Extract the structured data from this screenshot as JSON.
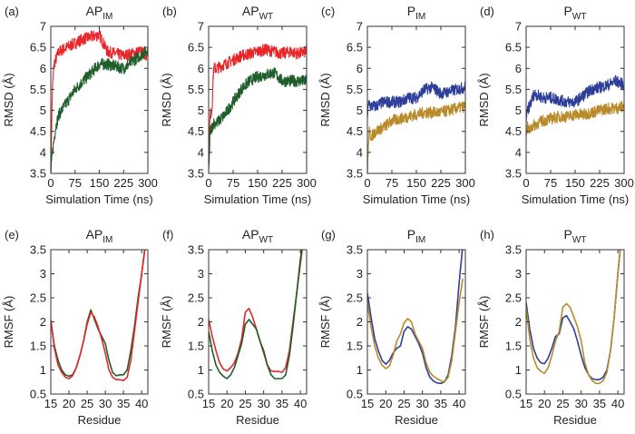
{
  "chart_data": [
    {
      "panel_label": "(a)",
      "title": "AP",
      "title_sub": "IM",
      "type": "line",
      "xlabel": "Simulation Time (ns)",
      "ylabel": "RMSD (Å)",
      "xlim": [
        0,
        300
      ],
      "ylim": [
        3.5,
        7
      ],
      "xticks": [
        "0",
        "75",
        "150",
        "225",
        "300"
      ],
      "yticks": [
        "3.5",
        "4",
        "4.5",
        "5",
        "5.5",
        "6",
        "6.5",
        "7"
      ],
      "x": [
        0,
        5,
        10,
        15,
        25,
        50,
        75,
        100,
        125,
        150,
        175,
        200,
        225,
        250,
        275,
        300
      ],
      "series": [
        {
          "color": "#e8262a",
          "values": [
            3.6,
            5.5,
            6.1,
            6.2,
            6.4,
            6.5,
            6.6,
            6.7,
            6.75,
            6.8,
            6.4,
            6.35,
            6.3,
            6.35,
            6.4,
            6.3
          ]
        },
        {
          "color": "#1e5e2a",
          "values": [
            3.5,
            4.0,
            4.3,
            4.6,
            4.9,
            5.2,
            5.5,
            5.7,
            5.9,
            6.1,
            6.1,
            6.05,
            6.0,
            6.15,
            6.3,
            6.45
          ]
        }
      ]
    },
    {
      "panel_label": "(b)",
      "title": "AP",
      "title_sub": "WT",
      "type": "line",
      "xlabel": "Simulation Time (ns)",
      "ylabel": "RMSD (Å)",
      "xlim": [
        0,
        300
      ],
      "ylim": [
        3.5,
        7
      ],
      "xticks": [
        "0",
        "75",
        "150",
        "225",
        "300"
      ],
      "yticks": [
        "3.5",
        "4",
        "4.5",
        "5",
        "5.5",
        "6",
        "6.5",
        "7"
      ],
      "x": [
        0,
        5,
        10,
        15,
        25,
        50,
        75,
        100,
        125,
        150,
        175,
        200,
        225,
        250,
        275,
        300
      ],
      "series": [
        {
          "color": "#e8262a",
          "values": [
            4.0,
            4.9,
            5.0,
            6.0,
            6.0,
            6.1,
            6.2,
            6.3,
            6.35,
            6.4,
            6.45,
            6.4,
            6.35,
            6.4,
            6.35,
            6.4
          ]
        },
        {
          "color": "#1e5e2a",
          "values": [
            3.5,
            4.5,
            4.6,
            4.7,
            4.7,
            4.9,
            5.2,
            5.5,
            5.7,
            5.8,
            5.85,
            5.9,
            5.7,
            5.7,
            5.7,
            5.7
          ]
        }
      ]
    },
    {
      "panel_label": "(c)",
      "title": "P",
      "title_sub": "IM",
      "type": "line",
      "xlabel": "Simulation Time (ns)",
      "ylabel": "RMSD (Å)",
      "xlim": [
        0,
        300
      ],
      "ylim": [
        3.5,
        7
      ],
      "xticks": [
        "0",
        "75",
        "150",
        "225",
        "300"
      ],
      "yticks": [
        "3.5",
        "4",
        "4.5",
        "5",
        "5.5",
        "6",
        "6.5",
        "7"
      ],
      "x": [
        0,
        5,
        10,
        15,
        25,
        50,
        75,
        100,
        125,
        150,
        175,
        200,
        225,
        250,
        275,
        300
      ],
      "series": [
        {
          "color": "#2e3f9a",
          "values": [
            4.9,
            5.2,
            5.1,
            5.1,
            5.1,
            5.2,
            5.2,
            5.2,
            5.3,
            5.3,
            5.5,
            5.55,
            5.4,
            5.45,
            5.5,
            5.55
          ]
        },
        {
          "color": "#b98a2a",
          "values": [
            3.5,
            4.5,
            4.4,
            4.4,
            4.5,
            4.6,
            4.75,
            4.8,
            4.85,
            4.9,
            4.95,
            4.95,
            4.95,
            5.0,
            5.05,
            5.1
          ]
        }
      ]
    },
    {
      "panel_label": "(d)",
      "title": "P",
      "title_sub": "WT",
      "type": "line",
      "xlabel": "Simulation Time (ns)",
      "ylabel": "RMSD (Å)",
      "xlim": [
        0,
        300
      ],
      "ylim": [
        3.5,
        7
      ],
      "xticks": [
        "0",
        "75",
        "150",
        "225",
        "300"
      ],
      "yticks": [
        "3.5",
        "4",
        "4.5",
        "5",
        "5.5",
        "6",
        "6.5",
        "7"
      ],
      "x": [
        0,
        5,
        10,
        15,
        25,
        50,
        75,
        100,
        125,
        150,
        175,
        200,
        225,
        250,
        275,
        300
      ],
      "series": [
        {
          "color": "#2e3f9a",
          "values": [
            4.8,
            5.0,
            5.1,
            5.2,
            5.4,
            5.3,
            5.3,
            5.25,
            5.2,
            5.2,
            5.35,
            5.5,
            5.55,
            5.6,
            5.7,
            5.6
          ]
        },
        {
          "color": "#b98a2a",
          "values": [
            4.5,
            4.6,
            4.5,
            4.6,
            4.65,
            4.75,
            4.8,
            4.85,
            4.85,
            4.9,
            4.9,
            4.95,
            5.0,
            5.05,
            5.05,
            5.1
          ]
        }
      ]
    },
    {
      "panel_label": "(e)",
      "title": "AP",
      "title_sub": "IM",
      "type": "line",
      "xlabel": "Residue",
      "ylabel": "RMSF (Å)",
      "xlim": [
        15,
        41.7
      ],
      "ylim": [
        0.5,
        3.5
      ],
      "xticks": [
        "15",
        "20",
        "25",
        "30",
        "35",
        "40"
      ],
      "yticks": [
        "0.5",
        "1",
        "1.5",
        "2",
        "2.5",
        "3",
        "3.5"
      ],
      "x": [
        15,
        16,
        17,
        18,
        19,
        20,
        21,
        22,
        23,
        24,
        25,
        26,
        27,
        28,
        29,
        30,
        31,
        32,
        33,
        34,
        35,
        36,
        37,
        38,
        39,
        40,
        41
      ],
      "series": [
        {
          "color": "#1e5e2a",
          "values": [
            2.0,
            1.5,
            1.2,
            1.0,
            0.9,
            0.87,
            0.9,
            1.05,
            1.3,
            1.6,
            2.0,
            2.25,
            2.05,
            1.85,
            1.7,
            1.55,
            1.2,
            0.95,
            0.88,
            0.9,
            0.9,
            1.0,
            1.4,
            1.9,
            2.5,
            3.0,
            3.6
          ]
        },
        {
          "color": "#e8262a",
          "values": [
            2.05,
            1.45,
            1.1,
            0.95,
            0.85,
            0.82,
            0.88,
            1.05,
            1.3,
            1.6,
            1.95,
            2.2,
            2.1,
            1.9,
            1.65,
            1.35,
            1.0,
            0.85,
            0.8,
            0.8,
            0.78,
            0.85,
            1.2,
            1.8,
            2.4,
            3.0,
            3.6
          ]
        }
      ]
    },
    {
      "panel_label": "(f)",
      "title": "AP",
      "title_sub": "WT",
      "type": "line",
      "xlabel": "Residue",
      "ylabel": "RMSF (Å)",
      "xlim": [
        15,
        41.7
      ],
      "ylim": [
        0.5,
        3.5
      ],
      "xticks": [
        "15",
        "20",
        "25",
        "30",
        "35",
        "40"
      ],
      "yticks": [
        "0.5",
        "1",
        "1.5",
        "2",
        "2.5",
        "3",
        "3.5"
      ],
      "x": [
        15,
        16,
        17,
        18,
        19,
        20,
        21,
        22,
        23,
        24,
        25,
        26,
        27,
        28,
        29,
        30,
        31,
        32,
        33,
        34,
        35,
        36,
        37,
        38,
        39,
        40,
        41
      ],
      "series": [
        {
          "color": "#e8262a",
          "values": [
            2.05,
            1.7,
            1.4,
            1.15,
            1.02,
            0.98,
            1.05,
            1.15,
            1.35,
            1.65,
            2.2,
            2.28,
            2.1,
            1.85,
            1.6,
            1.35,
            1.1,
            0.98,
            0.97,
            0.97,
            0.95,
            1.05,
            1.4,
            2.0,
            2.6,
            3.2,
            3.8
          ]
        },
        {
          "color": "#1e5e2a",
          "values": [
            1.8,
            1.4,
            1.1,
            0.95,
            0.87,
            0.82,
            0.9,
            1.05,
            1.3,
            1.55,
            1.95,
            2.05,
            1.95,
            1.85,
            1.6,
            1.4,
            1.1,
            0.9,
            0.82,
            0.82,
            0.82,
            0.9,
            1.3,
            1.9,
            2.6,
            3.3,
            3.8
          ]
        }
      ]
    },
    {
      "panel_label": "(g)",
      "title": "P",
      "title_sub": "IM",
      "type": "line",
      "xlabel": "Residue",
      "ylabel": "RMSF (Å)",
      "xlim": [
        15,
        41.7
      ],
      "ylim": [
        0.5,
        3.5
      ],
      "xticks": [
        "15",
        "20",
        "25",
        "30",
        "35",
        "40"
      ],
      "yticks": [
        "0.5",
        "1",
        "1.5",
        "2",
        "2.5",
        "3",
        "3.5"
      ],
      "x": [
        15,
        16,
        17,
        18,
        19,
        20,
        21,
        22,
        23,
        24,
        25,
        26,
        27,
        28,
        29,
        30,
        31,
        32,
        33,
        34,
        35,
        36,
        37,
        38,
        39,
        40,
        41
      ],
      "series": [
        {
          "color": "#2e3f9a",
          "values": [
            2.6,
            2.1,
            1.65,
            1.4,
            1.2,
            1.12,
            1.2,
            1.35,
            1.45,
            1.5,
            1.8,
            1.9,
            1.85,
            1.7,
            1.55,
            1.35,
            1.05,
            0.85,
            0.77,
            0.73,
            0.72,
            0.75,
            0.9,
            1.3,
            1.9,
            2.8,
            3.6
          ]
        },
        {
          "color": "#b98a2a",
          "values": [
            2.4,
            1.9,
            1.5,
            1.25,
            1.1,
            1.03,
            1.08,
            1.3,
            1.6,
            1.75,
            1.98,
            2.07,
            2.0,
            1.75,
            1.6,
            1.45,
            1.15,
            0.95,
            0.87,
            0.82,
            0.78,
            0.75,
            0.85,
            1.2,
            1.8,
            2.4,
            2.9
          ]
        }
      ]
    },
    {
      "panel_label": "(h)",
      "title": "P",
      "title_sub": "WT",
      "type": "line",
      "xlabel": "Residue",
      "ylabel": "RMSF (Å)",
      "xlim": [
        15,
        41.7
      ],
      "ylim": [
        0.5,
        3.5
      ],
      "xticks": [
        "15",
        "20",
        "25",
        "30",
        "35",
        "40"
      ],
      "yticks": [
        "0.5",
        "1",
        "1.5",
        "2",
        "2.5",
        "3",
        "3.5"
      ],
      "x": [
        15,
        16,
        17,
        18,
        19,
        20,
        21,
        22,
        23,
        24,
        25,
        26,
        27,
        28,
        29,
        30,
        31,
        32,
        33,
        34,
        35,
        36,
        37,
        38,
        39,
        40,
        41
      ],
      "series": [
        {
          "color": "#2e3f9a",
          "values": [
            2.4,
            1.85,
            1.45,
            1.25,
            1.15,
            1.13,
            1.25,
            1.45,
            1.7,
            1.75,
            2.08,
            2.13,
            2.0,
            1.85,
            1.6,
            1.3,
            1.05,
            0.9,
            0.82,
            0.8,
            0.8,
            0.85,
            1.0,
            1.4,
            2.1,
            3.0,
            3.8
          ]
        },
        {
          "color": "#b98a2a",
          "values": [
            2.3,
            1.65,
            1.25,
            1.05,
            0.97,
            0.93,
            1.05,
            1.3,
            1.6,
            1.8,
            2.3,
            2.38,
            2.3,
            2.1,
            1.9,
            1.6,
            1.15,
            0.9,
            0.78,
            0.72,
            0.72,
            0.78,
            0.95,
            1.4,
            2.1,
            3.0,
            3.8
          ]
        }
      ]
    }
  ]
}
